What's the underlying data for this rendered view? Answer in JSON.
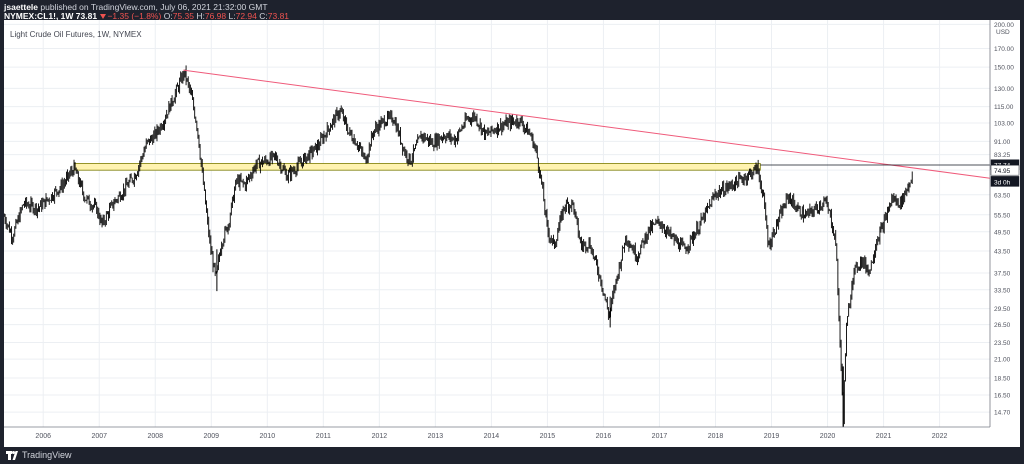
{
  "header": {
    "author": "jsaettele",
    "published": "published on TradingView.com, July 06, 2021 21:32:00 GMT",
    "symbol": "NYMEX:CL1!, 1W",
    "last": "73.81",
    "change": "−1.35 (−1.8%)",
    "o_label": "O:",
    "o_value": "75.35",
    "h_label": "H:",
    "h_value": "76.98",
    "l_label": "L:",
    "l_value": "72.94",
    "c_label": "C:",
    "c_value": "73.81"
  },
  "footer": {
    "brand": "TradingView"
  },
  "chart_data": {
    "type": "candlestick",
    "title": "Light Crude Oil Futures, 1W, NYMEX",
    "y_scale": "log",
    "currency_label": "USD",
    "xlim": [
      2005.3,
      2022.9
    ],
    "ylim": [
      13.3,
      206
    ],
    "y_ticks": [
      200,
      170,
      150,
      130,
      115,
      103,
      91,
      83.25,
      74.95,
      63.5,
      55.5,
      49.5,
      43.5,
      37.5,
      33.5,
      29.5,
      26.5,
      23.5,
      21,
      18.5,
      16.5,
      14.7
    ],
    "y_tick_labels": [
      "200.00",
      "170.00",
      "150.00",
      "130.00",
      "115.00",
      "103.00",
      "91.00",
      "83.25",
      "74.95",
      "63.50",
      "55.50",
      "49.50",
      "43.50",
      "37.50",
      "33.50",
      "29.50",
      "26.50",
      "23.50",
      "21.00",
      "18.50",
      "16.50",
      "14.70"
    ],
    "x_ticks": [
      2006,
      2007,
      2008,
      2009,
      2010,
      2011,
      2012,
      2013,
      2014,
      2015,
      2016,
      2017,
      2018,
      2019,
      2020,
      2021,
      2022
    ],
    "x_tick_labels": [
      "2006",
      "2007",
      "2008",
      "2009",
      "2010",
      "2011",
      "2012",
      "2013",
      "2014",
      "2015",
      "2016",
      "2017",
      "2018",
      "2019",
      "2020",
      "2021",
      "2022"
    ],
    "price_path": [
      [
        2005.3,
        55
      ],
      [
        2005.45,
        48
      ],
      [
        2005.65,
        60
      ],
      [
        2005.9,
        58
      ],
      [
        2006.1,
        62
      ],
      [
        2006.35,
        68
      ],
      [
        2006.55,
        76
      ],
      [
        2006.75,
        62
      ],
      [
        2006.95,
        58
      ],
      [
        2007.05,
        52
      ],
      [
        2007.25,
        60
      ],
      [
        2007.45,
        66
      ],
      [
        2007.65,
        73
      ],
      [
        2007.85,
        90
      ],
      [
        2008.0,
        95
      ],
      [
        2008.15,
        105
      ],
      [
        2008.35,
        125
      ],
      [
        2008.52,
        145
      ],
      [
        2008.65,
        122
      ],
      [
        2008.75,
        100
      ],
      [
        2008.85,
        70
      ],
      [
        2008.98,
        45
      ],
      [
        2009.08,
        36
      ],
      [
        2009.18,
        46
      ],
      [
        2009.3,
        52
      ],
      [
        2009.45,
        70
      ],
      [
        2009.6,
        68
      ],
      [
        2009.8,
        78
      ],
      [
        2010.0,
        80
      ],
      [
        2010.15,
        82
      ],
      [
        2010.35,
        72
      ],
      [
        2010.5,
        76
      ],
      [
        2010.7,
        82
      ],
      [
        2010.9,
        88
      ],
      [
        2011.1,
        100
      ],
      [
        2011.3,
        112
      ],
      [
        2011.45,
        97
      ],
      [
        2011.6,
        90
      ],
      [
        2011.75,
        80
      ],
      [
        2011.9,
        98
      ],
      [
        2012.1,
        105
      ],
      [
        2012.25,
        107
      ],
      [
        2012.45,
        85
      ],
      [
        2012.55,
        80
      ],
      [
        2012.75,
        95
      ],
      [
        2012.95,
        90
      ],
      [
        2013.15,
        95
      ],
      [
        2013.35,
        92
      ],
      [
        2013.55,
        105
      ],
      [
        2013.7,
        108
      ],
      [
        2013.9,
        95
      ],
      [
        2014.1,
        100
      ],
      [
        2014.3,
        103
      ],
      [
        2014.5,
        105
      ],
      [
        2014.7,
        95
      ],
      [
        2014.8,
        85
      ],
      [
        2014.9,
        68
      ],
      [
        2015.0,
        50
      ],
      [
        2015.12,
        45
      ],
      [
        2015.3,
        59
      ],
      [
        2015.45,
        60
      ],
      [
        2015.6,
        45
      ],
      [
        2015.75,
        46
      ],
      [
        2015.95,
        36
      ],
      [
        2016.1,
        28
      ],
      [
        2016.2,
        34
      ],
      [
        2016.4,
        48
      ],
      [
        2016.6,
        42
      ],
      [
        2016.8,
        50
      ],
      [
        2017.0,
        53
      ],
      [
        2017.2,
        48
      ],
      [
        2017.45,
        44
      ],
      [
        2017.6,
        48
      ],
      [
        2017.8,
        55
      ],
      [
        2018.0,
        64
      ],
      [
        2018.3,
        68
      ],
      [
        2018.55,
        72
      ],
      [
        2018.75,
        76
      ],
      [
        2018.85,
        63
      ],
      [
        2018.95,
        45
      ],
      [
        2019.05,
        50
      ],
      [
        2019.3,
        63
      ],
      [
        2019.45,
        58
      ],
      [
        2019.6,
        55
      ],
      [
        2019.8,
        58
      ],
      [
        2019.95,
        61
      ],
      [
        2020.05,
        55
      ],
      [
        2020.15,
        46
      ],
      [
        2020.22,
        24
      ],
      [
        2020.28,
        14
      ],
      [
        2020.33,
        25
      ],
      [
        2020.45,
        37
      ],
      [
        2020.6,
        41
      ],
      [
        2020.75,
        38
      ],
      [
        2020.88,
        47
      ],
      [
        2021.0,
        52
      ],
      [
        2021.15,
        62
      ],
      [
        2021.3,
        60
      ],
      [
        2021.45,
        68
      ],
      [
        2021.52,
        74
      ]
    ],
    "shadows": {
      "2008_low": 33.2,
      "2016_low": 26.0,
      "2020_low": 10.0
    },
    "zone": {
      "x_start": 2006.55,
      "x_end": 2018.8,
      "y_low": 74.95,
      "y_high": 78.4
    },
    "trendline": {
      "x1": 2008.5,
      "y1": 147,
      "x2": 2022.9,
      "y2": 71
    },
    "hline": {
      "y": 77.6,
      "x_start": 2018.8
    },
    "price_labels": [
      {
        "text": "77.74",
        "y": 77.74,
        "bg": "#131722",
        "fg": "#ffffff"
      },
      {
        "text": "74.95",
        "y": 74.95,
        "bg": "#ffffff",
        "fg": "#131722"
      },
      {
        "text": "3d 0h",
        "y": 69.5,
        "bg": "#131722",
        "fg": "#ffffff"
      }
    ],
    "colors": {
      "price": "#000000",
      "zone_fill": "#fff3b0",
      "zone_border": "#7c7c00",
      "trendline": "#ef5a7a",
      "grid": "#eceff3",
      "axis_text": "#50535e"
    }
  }
}
